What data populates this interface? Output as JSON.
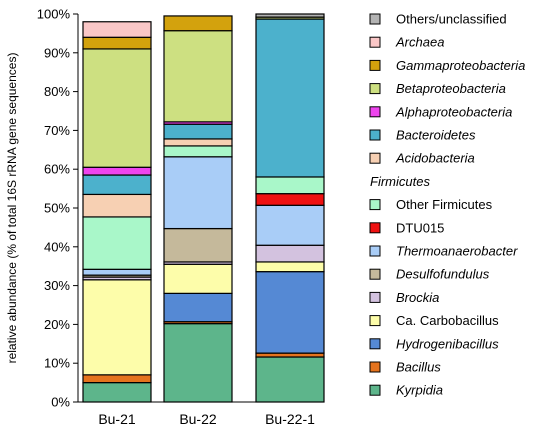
{
  "chart_data": {
    "type": "bar",
    "stacked": true,
    "percent": true,
    "categories": [
      "Bu-21",
      "Bu-22",
      "Bu-22-1"
    ],
    "ylabel": "relative abundance (% of total 16S rRNA gene sequences)",
    "ylim": [
      0,
      100
    ],
    "yticks": [
      "0%",
      "10%",
      "20%",
      "30%",
      "40%",
      "50%",
      "60%",
      "70%",
      "80%",
      "90%",
      "100%"
    ],
    "legend_position": "right",
    "series": [
      {
        "name": "Kyrpidia",
        "italic": true,
        "color": "#5db58b",
        "values": [
          5.0,
          20.2,
          11.6
        ]
      },
      {
        "name": "Bacillus",
        "italic": true,
        "color": "#e5731d",
        "values": [
          2.0,
          0.5,
          1.0
        ]
      },
      {
        "name": "Hydrogenibacillus",
        "italic": true,
        "color": "#5589d4",
        "values": [
          0.0,
          7.3,
          21.0
        ]
      },
      {
        "name": "Ca. Carbobacillus",
        "italic": false,
        "color": "#fdfdaa",
        "values": [
          24.5,
          7.5,
          2.5
        ]
      },
      {
        "name": "Brockia",
        "italic": true,
        "color": "#d3c2df",
        "values": [
          0.7,
          0.6,
          4.3
        ]
      },
      {
        "name": "Desulfofundulus",
        "italic": true,
        "color": "#c5b99b",
        "values": [
          0.5,
          8.6,
          0.0
        ]
      },
      {
        "name": "Thermoanaerobacter",
        "italic": true,
        "color": "#a9cdf7",
        "values": [
          1.5,
          18.5,
          10.3
        ]
      },
      {
        "name": "DTU015",
        "italic": false,
        "color": "#ee1111",
        "values": [
          0.0,
          0.0,
          3.0
        ]
      },
      {
        "name": "Other Firmicutes",
        "italic": false,
        "color": "#a9f7c9",
        "values": [
          13.5,
          2.8,
          4.3
        ]
      },
      {
        "name": "Acidobacteria",
        "italic": true,
        "color": "#f7d0b3",
        "values": [
          5.8,
          1.8,
          0.0
        ]
      },
      {
        "name": "Bacteroidetes",
        "italic": true,
        "color": "#4cb1cc",
        "values": [
          5.0,
          3.8,
          40.7
        ]
      },
      {
        "name": "Alphaproteobacteria",
        "italic": true,
        "color": "#ee44ee",
        "values": [
          2.0,
          0.6,
          0.0
        ]
      },
      {
        "name": "Betaproteobacteria",
        "italic": true,
        "color": "#cde081",
        "values": [
          30.5,
          23.5,
          0.5
        ]
      },
      {
        "name": "Gammaproteobacteria",
        "italic": true,
        "color": "#d3a20d",
        "values": [
          3.0,
          3.8,
          0.0
        ]
      },
      {
        "name": "Archaea",
        "italic": true,
        "color": "#fac7c7",
        "values": [
          4.0,
          0.0,
          0.0
        ]
      },
      {
        "name": "Others/unclassified",
        "italic": false,
        "color": "#b3b3b3",
        "values": [
          0.0,
          0.0,
          0.8
        ]
      }
    ],
    "legend": [
      {
        "type": "entry",
        "name": "Others/unclassified",
        "italic": false,
        "color": "#b3b3b3"
      },
      {
        "type": "entry",
        "name": "Archaea",
        "italic": true,
        "color": "#fac7c7"
      },
      {
        "type": "entry",
        "name": "Gammaproteobacteria",
        "italic": true,
        "color": "#d3a20d"
      },
      {
        "type": "entry",
        "name": "Betaproteobacteria",
        "italic": true,
        "color": "#cde081"
      },
      {
        "type": "entry",
        "name": "Alphaproteobacteria",
        "italic": true,
        "color": "#ee44ee"
      },
      {
        "type": "entry",
        "name": "Bacteroidetes",
        "italic": true,
        "color": "#4cb1cc"
      },
      {
        "type": "entry",
        "name": "Acidobacteria",
        "italic": true,
        "color": "#f7d0b3"
      },
      {
        "type": "header",
        "name": "Firmicutes",
        "italic": true
      },
      {
        "type": "entry",
        "name": "Other Firmicutes",
        "italic": false,
        "color": "#a9f7c9"
      },
      {
        "type": "entry",
        "name": "DTU015",
        "italic": false,
        "color": "#ee1111"
      },
      {
        "type": "entry",
        "name": "Thermoanaerobacter",
        "italic": true,
        "color": "#a9cdf7"
      },
      {
        "type": "entry",
        "name": "Desulfofundulus",
        "italic": true,
        "color": "#c5b99b"
      },
      {
        "type": "entry",
        "name": "Brockia",
        "italic": true,
        "color": "#d3c2df"
      },
      {
        "type": "entry",
        "name": "Ca. Carbobacillus",
        "italic": false,
        "color": "#fdfdaa"
      },
      {
        "type": "entry",
        "name": "Hydrogenibacillus",
        "italic": true,
        "color": "#5589d4"
      },
      {
        "type": "entry",
        "name": "Bacillus",
        "italic": true,
        "color": "#e5731d"
      },
      {
        "type": "entry",
        "name": "Kyrpidia",
        "italic": true,
        "color": "#5db58b"
      }
    ]
  }
}
